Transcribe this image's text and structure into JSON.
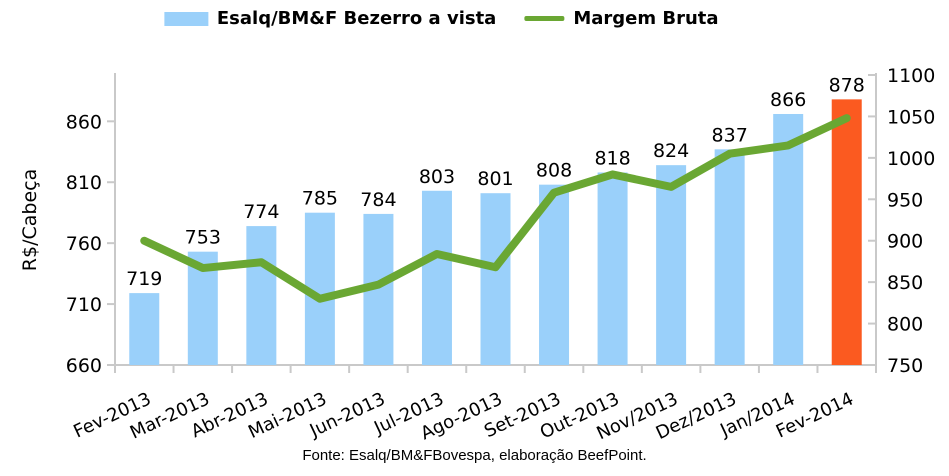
{
  "legend": {
    "items": [
      {
        "label": "Esalq/BM&F Bezerro a vista",
        "marker": "bar-swatch",
        "color": "#9AD0FA"
      },
      {
        "label": "Margem Bruta",
        "marker": "line-swatch",
        "color": "#6AA733"
      }
    ]
  },
  "footer": {
    "source_text": "Fonte:  Esalq/BM&FBovespa,  elaboração  BeefPoint."
  },
  "chart_data": {
    "type": "combo",
    "title": "",
    "categories": [
      "Fev-2013",
      "Mar-2013",
      "Abr-2013",
      "Mai-2013",
      "Jun-2013",
      "Jul-2013",
      "Ago-2013",
      "Set-2013",
      "Out-2013",
      "Nov/2013",
      "Dez/2013",
      "Jan/2014",
      "Fev-2014"
    ],
    "series": [
      {
        "name": "Esalq/BM&F Bezerro a vista",
        "type": "bar",
        "axis": "left",
        "values": [
          719,
          753,
          774,
          785,
          784,
          803,
          801,
          808,
          818,
          824,
          837,
          866,
          878
        ],
        "data_labels": true,
        "color": "#9AD0FA",
        "highlight_index": 12,
        "highlight_color": "#FB5A20"
      },
      {
        "name": "Margem Bruta",
        "type": "line",
        "axis": "right",
        "values": [
          900,
          867,
          874,
          830,
          847,
          884,
          868,
          958,
          980,
          965,
          1005,
          1015,
          1048
        ],
        "values_estimated_from_pixels": true,
        "color": "#6AA733",
        "stroke_width": 8
      }
    ],
    "left_axis": {
      "title": "R$/Cabeça",
      "ticks": [
        660,
        710,
        760,
        810,
        860
      ],
      "min": 660,
      "max": 898
    },
    "right_axis": {
      "title": "",
      "ticks": [
        750,
        800,
        850,
        900,
        950,
        1000,
        1050,
        1100
      ],
      "min": 750,
      "max": 1100
    },
    "grid": "off",
    "legend_position": "top",
    "axis_color": "#C9C9C9",
    "tick_label_font_px": 19,
    "data_label_font_px": 19,
    "x_label_rotation_deg": -25
  }
}
